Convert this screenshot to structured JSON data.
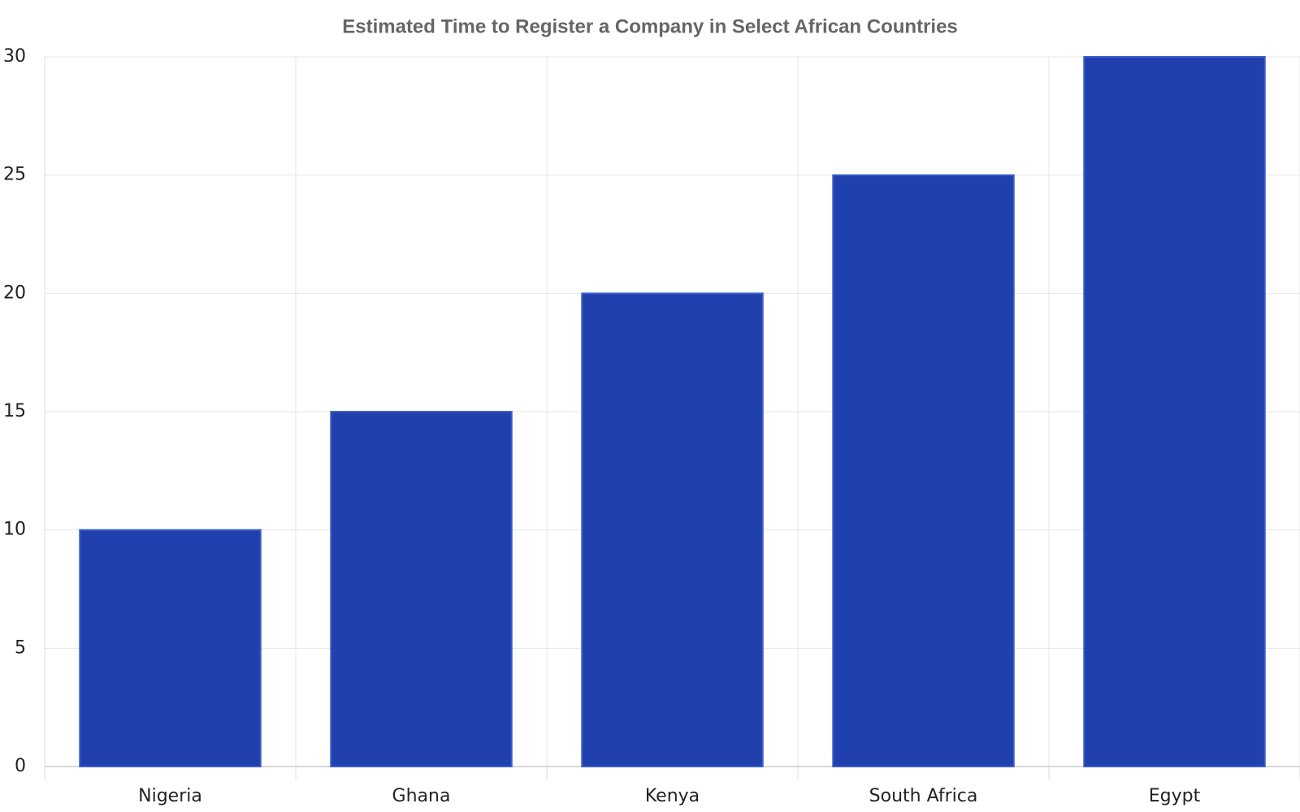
{
  "chart_data": {
    "type": "bar",
    "title": "Estimated Time to Register a Company in Select African Countries",
    "categories": [
      "Nigeria",
      "Ghana",
      "Kenya",
      "South Africa",
      "Egypt"
    ],
    "values": [
      10,
      15,
      20,
      25,
      30
    ],
    "color": "#1f40ad",
    "ylim": [
      0,
      30
    ],
    "yticks": [
      0,
      5,
      10,
      15,
      20,
      25,
      30
    ],
    "grid": true
  }
}
